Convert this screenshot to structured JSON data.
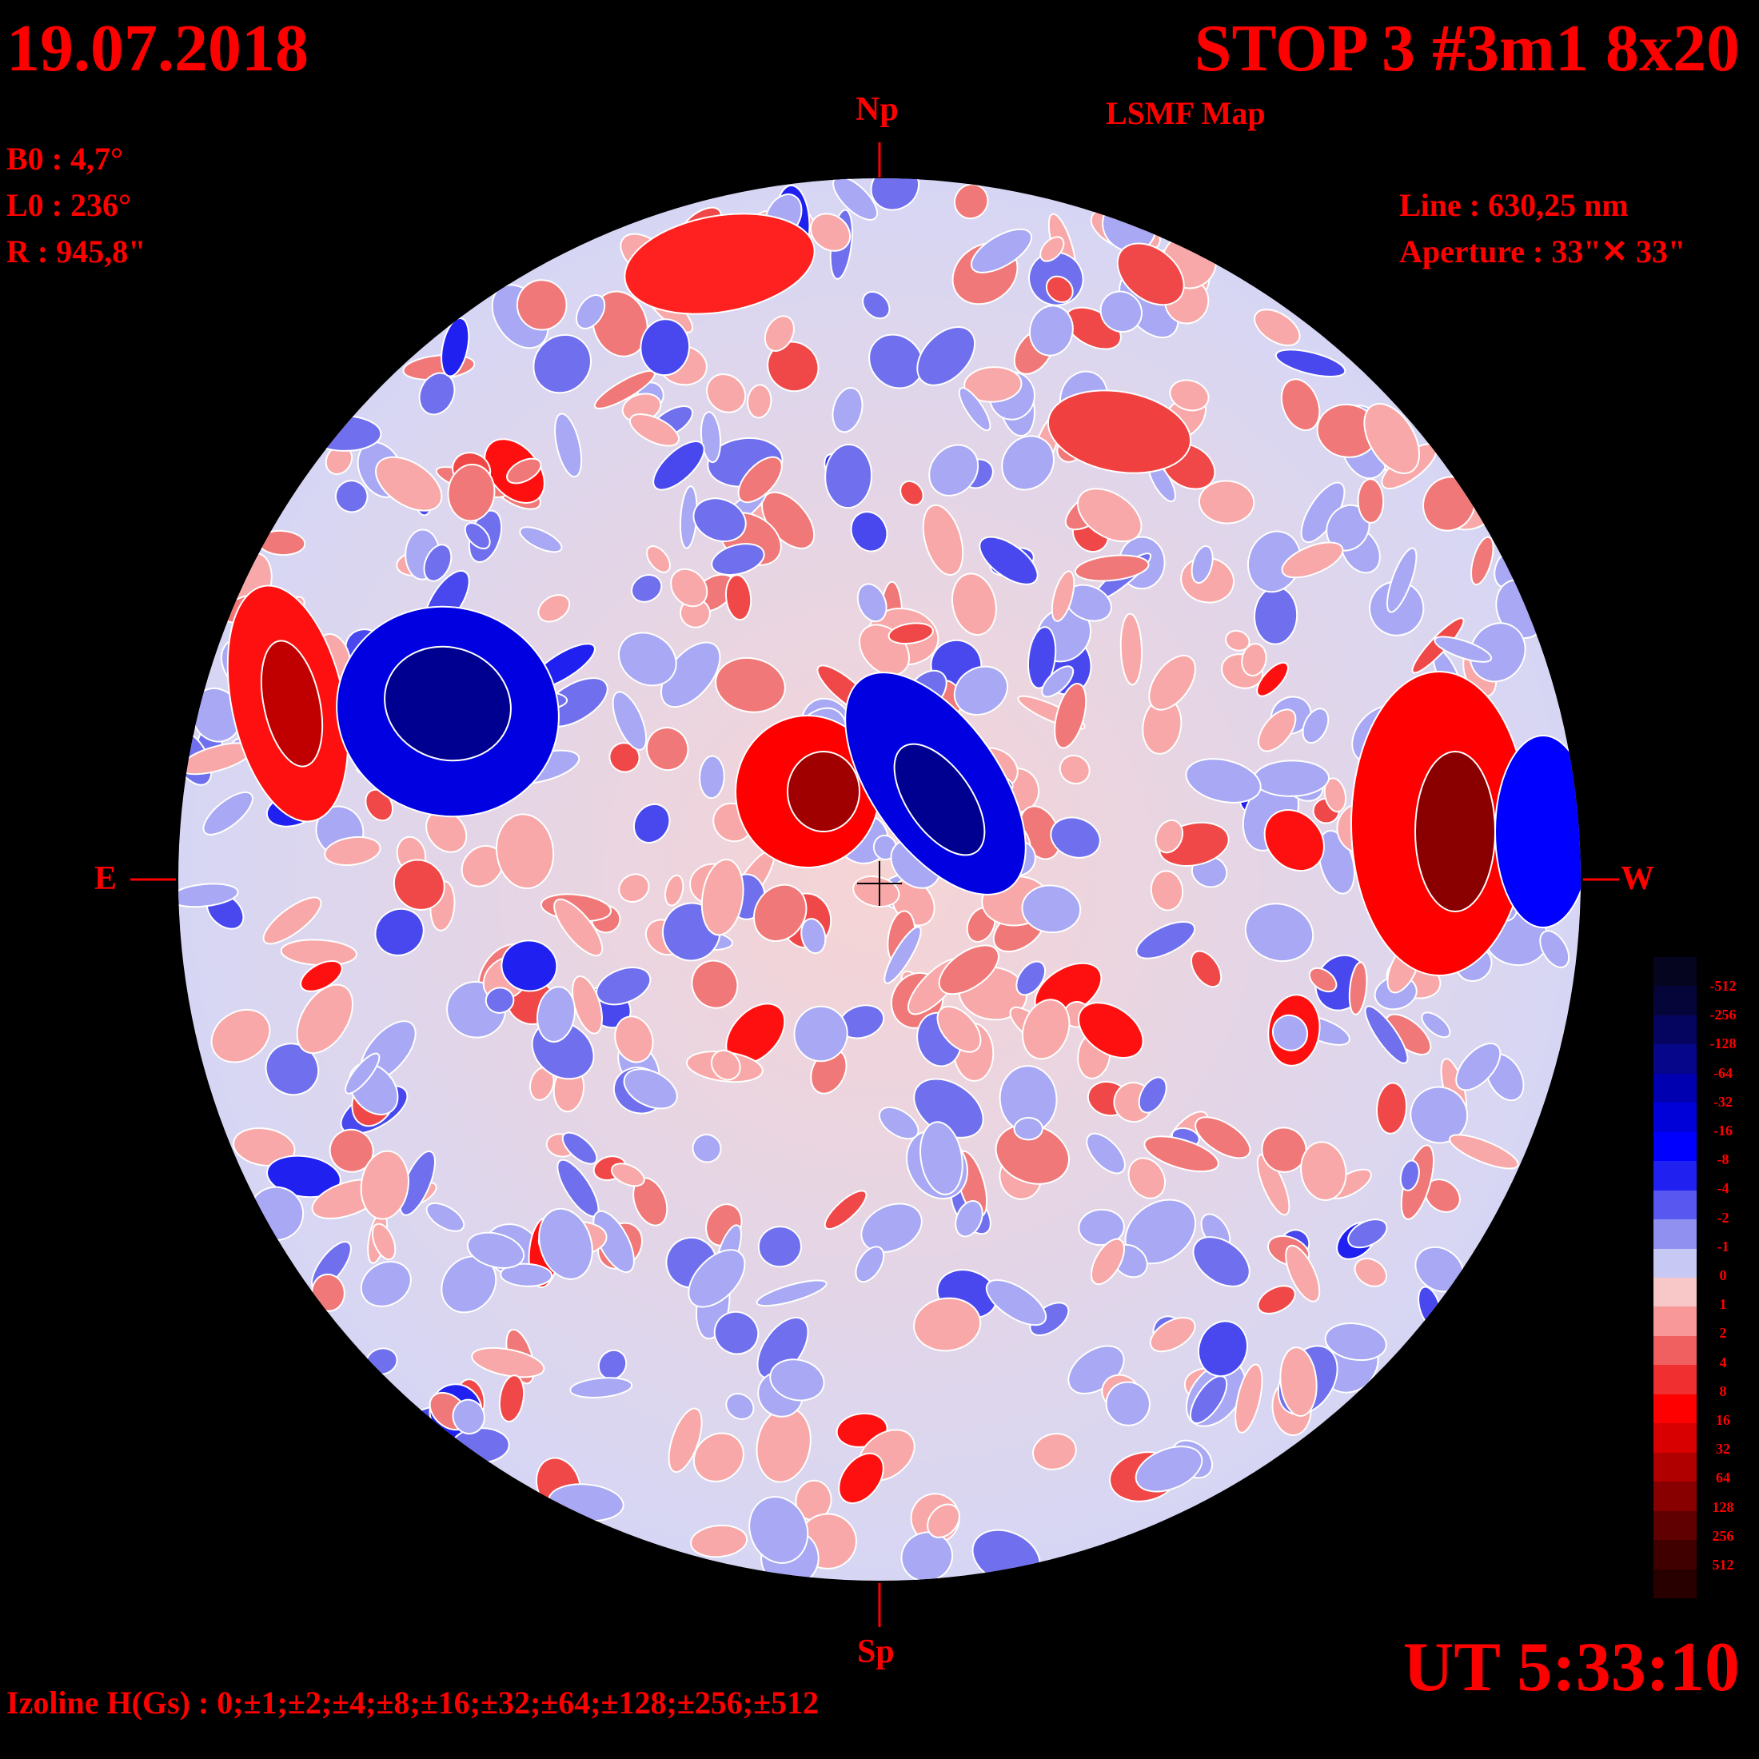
{
  "header": {
    "date": "19.07.2018",
    "title": "STOP 3 #3m1 8x20",
    "subtitle": "LSMF  Map"
  },
  "ephemeris": {
    "b0": "B0 : 4,7°",
    "l0": "L0 : 236°",
    "radius": "R  : 945,8\""
  },
  "instrument": {
    "line": "Line :  630,25 nm",
    "aperture": "Aperture : 33\"✕ 33\""
  },
  "directions": {
    "north": "Np",
    "south": "Sp",
    "east": "E",
    "west": "W"
  },
  "time": "UT 5:33:10",
  "izoline": "Izoline H(Gs) : 0;±1;±2;±4;±8;±16;±32;±64;±128;±256;±512",
  "colorbar": {
    "labels": [
      "-512",
      "-256",
      "-128",
      "-64",
      "-32",
      "-16",
      "-8",
      "-4",
      "-2",
      "-1",
      "0",
      "1",
      "2",
      "4",
      "8",
      "16",
      "32",
      "64",
      "128",
      "256",
      "512"
    ],
    "colors": [
      "#050520",
      "#05053a",
      "#050560",
      "#06068a",
      "#0000b0",
      "#0000d8",
      "#0000ff",
      "#2020f0",
      "#5858f0",
      "#9090f0",
      "#c8c8f4",
      "#f8c8c8",
      "#f89898",
      "#f06060",
      "#f03030",
      "#ff0000",
      "#d80000",
      "#b00000",
      "#880000",
      "#600000",
      "#400000",
      "#280000"
    ]
  }
}
